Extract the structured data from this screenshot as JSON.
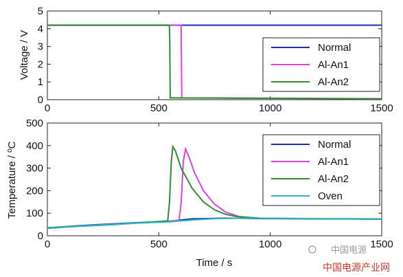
{
  "chart_data": [
    {
      "type": "line",
      "ylabel": "Voltage / V",
      "xlabel": "",
      "xlim": [
        0,
        1500
      ],
      "ylim": [
        0,
        5
      ],
      "xticks": [
        0,
        500,
        1000,
        1500
      ],
      "yticks": [
        0,
        1,
        2,
        3,
        4,
        5
      ],
      "legend": "top-right",
      "series": [
        {
          "name": "Normal",
          "color": "#1f2fa8",
          "points": [
            [
              0,
              4.2
            ],
            [
              1500,
              4.2
            ]
          ]
        },
        {
          "name": "Al-An1",
          "color": "#e040e0",
          "points": [
            [
              0,
              4.2
            ],
            [
              600,
              4.2
            ],
            [
              603,
              0.1
            ],
            [
              1500,
              0.05
            ]
          ]
        },
        {
          "name": "Al-An2",
          "color": "#2e8b2e",
          "points": [
            [
              0,
              4.2
            ],
            [
              547,
              4.2
            ],
            [
              549,
              3.6
            ],
            [
              551,
              0.1
            ],
            [
              1500,
              0.05
            ]
          ]
        }
      ]
    },
    {
      "type": "line",
      "ylabel": "Temperature / ºC",
      "xlabel": "Time / s",
      "xlim": [
        0,
        1500
      ],
      "ylim": [
        0,
        500
      ],
      "xticks": [
        0,
        500,
        1000,
        1500
      ],
      "yticks": [
        0,
        100,
        200,
        300,
        400,
        500
      ],
      "legend": "top-right",
      "series": [
        {
          "name": "Normal",
          "color": "#1f2fa8",
          "points": [
            [
              0,
              35
            ],
            [
              200,
              48
            ],
            [
              400,
              58
            ],
            [
              550,
              65
            ],
            [
              650,
              75
            ],
            [
              800,
              78
            ],
            [
              1000,
              76
            ],
            [
              1500,
              74
            ]
          ]
        },
        {
          "name": "Al-An1",
          "color": "#e040e0",
          "points": [
            [
              0,
              35
            ],
            [
              300,
              50
            ],
            [
              590,
              68
            ],
            [
              600,
              140
            ],
            [
              610,
              330
            ],
            [
              620,
              385
            ],
            [
              635,
              350
            ],
            [
              660,
              280
            ],
            [
              700,
              200
            ],
            [
              750,
              140
            ],
            [
              800,
              105
            ],
            [
              860,
              85
            ],
            [
              950,
              78
            ],
            [
              1100,
              76
            ],
            [
              1500,
              74
            ]
          ]
        },
        {
          "name": "Al-An2",
          "color": "#2e8b2e",
          "points": [
            [
              0,
              35
            ],
            [
              300,
              50
            ],
            [
              540,
              66
            ],
            [
              548,
              150
            ],
            [
              556,
              330
            ],
            [
              563,
              395
            ],
            [
              575,
              375
            ],
            [
              600,
              300
            ],
            [
              650,
              210
            ],
            [
              700,
              150
            ],
            [
              750,
              115
            ],
            [
              800,
              95
            ],
            [
              850,
              85
            ],
            [
              950,
              78
            ],
            [
              1100,
              76
            ],
            [
              1500,
              74
            ]
          ]
        },
        {
          "name": "Oven",
          "color": "#2ab5c4",
          "points": [
            [
              0,
              33
            ],
            [
              200,
              46
            ],
            [
              400,
              56
            ],
            [
              550,
              62
            ],
            [
              650,
              70
            ],
            [
              750,
              76
            ],
            [
              900,
              78
            ],
            [
              1100,
              77
            ],
            [
              1300,
              76
            ],
            [
              1500,
              75
            ]
          ]
        }
      ]
    }
  ],
  "watermark": {
    "line1": "中国电源",
    "line2": "中国电源产业网"
  }
}
